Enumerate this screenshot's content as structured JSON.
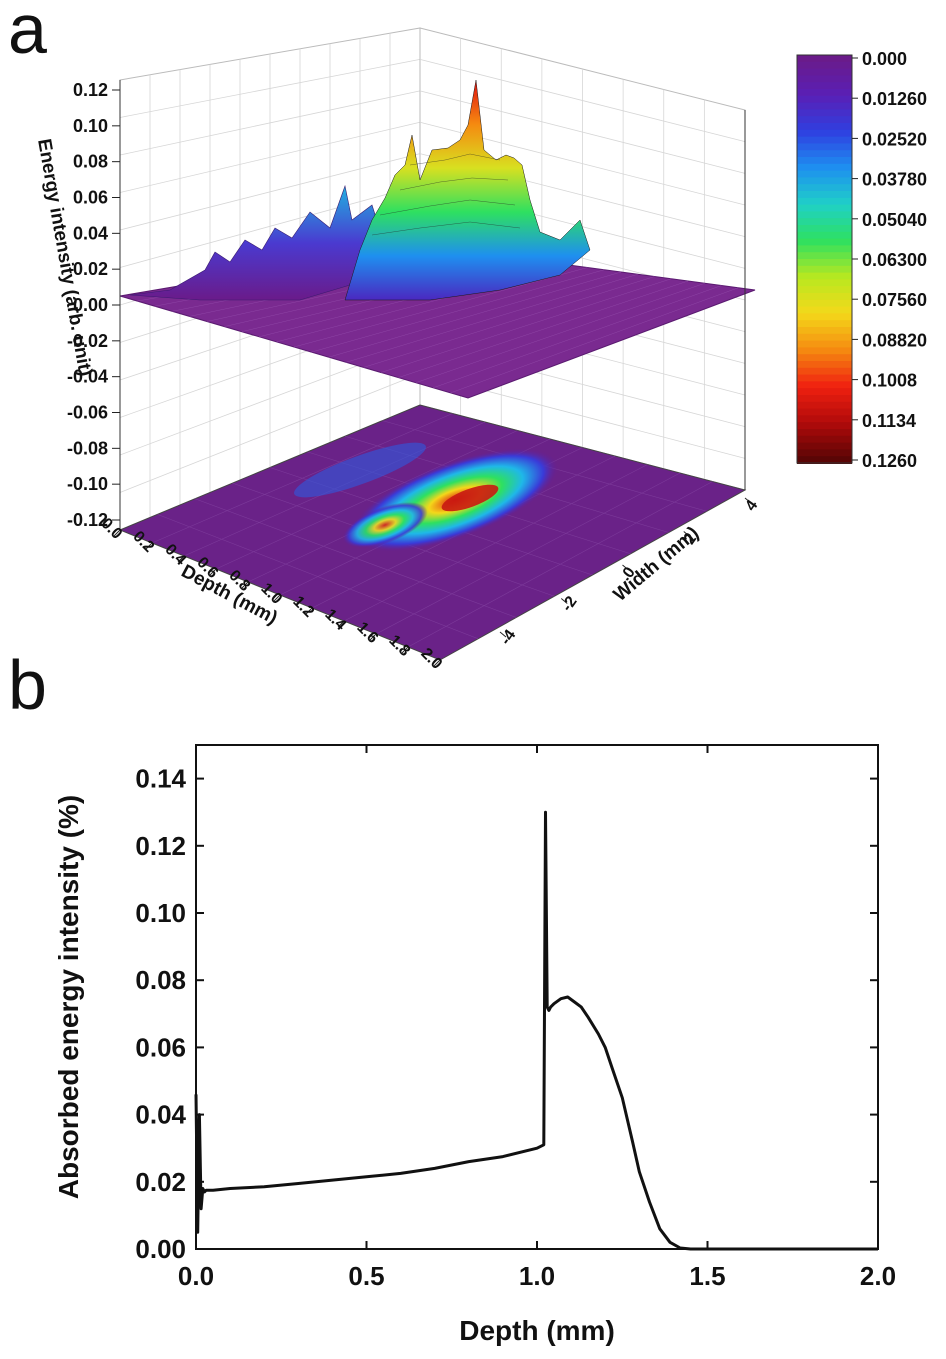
{
  "panels": {
    "a": "a",
    "b": "b"
  },
  "chart_data": [
    {
      "panel": "a",
      "type": "heatmap",
      "zlabel": "Energy intensity (arb. unit)",
      "xlabel": "Depth (mm)",
      "ylabel": "Width (mm)",
      "z_ticks": [
        "0.12",
        "0.10",
        "0.08",
        "0.06",
        "0.04",
        "0.02",
        "0.00",
        "-0.02",
        "-0.04",
        "-0.06",
        "-0.08",
        "-0.10",
        "-0.12"
      ],
      "x_ticks": [
        "0.0",
        "0.2",
        "0.4",
        "0.6",
        "0.8",
        "1.0",
        "1.2",
        "1.4",
        "1.6",
        "1.8",
        "2.0"
      ],
      "y_ticks": [
        "-4",
        "-2",
        "0",
        "2",
        "4"
      ],
      "colorbar_ticks": [
        "0.000",
        "0.01260",
        "0.02520",
        "0.03780",
        "0.05040",
        "0.06300",
        "0.07560",
        "0.08820",
        "0.1008",
        "0.1134",
        "0.1260"
      ],
      "colorbar_colors": [
        "#6a1b8a",
        "#5a1fb5",
        "#2f3fe0",
        "#1e8ff0",
        "#1fd0c8",
        "#2ee060",
        "#b8e820",
        "#f4d81a",
        "#f58a10",
        "#f02010",
        "#b00a0a",
        "#5a0505"
      ],
      "zlim": [
        -0.12,
        0.12
      ],
      "xlim": [
        0.0,
        2.0
      ],
      "ylim": [
        -4,
        4
      ]
    },
    {
      "panel": "b",
      "type": "line",
      "xlabel": "Depth (mm)",
      "ylabel": "Absorbed energy intensity (%)",
      "xlim": [
        0.0,
        2.0
      ],
      "ylim": [
        0.0,
        0.15
      ],
      "x_ticks": [
        "0.0",
        "0.5",
        "1.0",
        "1.5",
        "2.0"
      ],
      "y_ticks": [
        "0.00",
        "0.02",
        "0.04",
        "0.06",
        "0.08",
        "0.10",
        "0.12",
        "0.14"
      ],
      "series": [
        {
          "x": [
            0.0,
            0.005,
            0.01,
            0.015,
            0.02,
            0.025,
            0.03,
            0.05,
            0.1,
            0.2,
            0.3,
            0.4,
            0.5,
            0.6,
            0.7,
            0.8,
            0.9,
            1.0,
            1.02,
            1.025,
            1.03,
            1.035,
            1.04,
            1.05,
            1.07,
            1.09,
            1.11,
            1.13,
            1.15,
            1.18,
            1.2,
            1.22,
            1.25,
            1.28,
            1.3,
            1.33,
            1.36,
            1.39,
            1.42,
            1.45,
            1.5,
            1.6,
            1.7,
            1.8,
            1.9,
            2.0
          ],
          "y": [
            0.046,
            0.005,
            0.04,
            0.012,
            0.018,
            0.017,
            0.0175,
            0.0175,
            0.018,
            0.0185,
            0.0195,
            0.0205,
            0.0215,
            0.0225,
            0.024,
            0.026,
            0.0275,
            0.03,
            0.031,
            0.13,
            0.072,
            0.071,
            0.072,
            0.073,
            0.0745,
            0.075,
            0.0735,
            0.072,
            0.069,
            0.064,
            0.06,
            0.054,
            0.045,
            0.032,
            0.023,
            0.014,
            0.006,
            0.002,
            0.0003,
            0.0,
            0.0,
            0.0,
            0.0,
            0.0,
            0.0,
            0.0
          ]
        }
      ]
    }
  ]
}
